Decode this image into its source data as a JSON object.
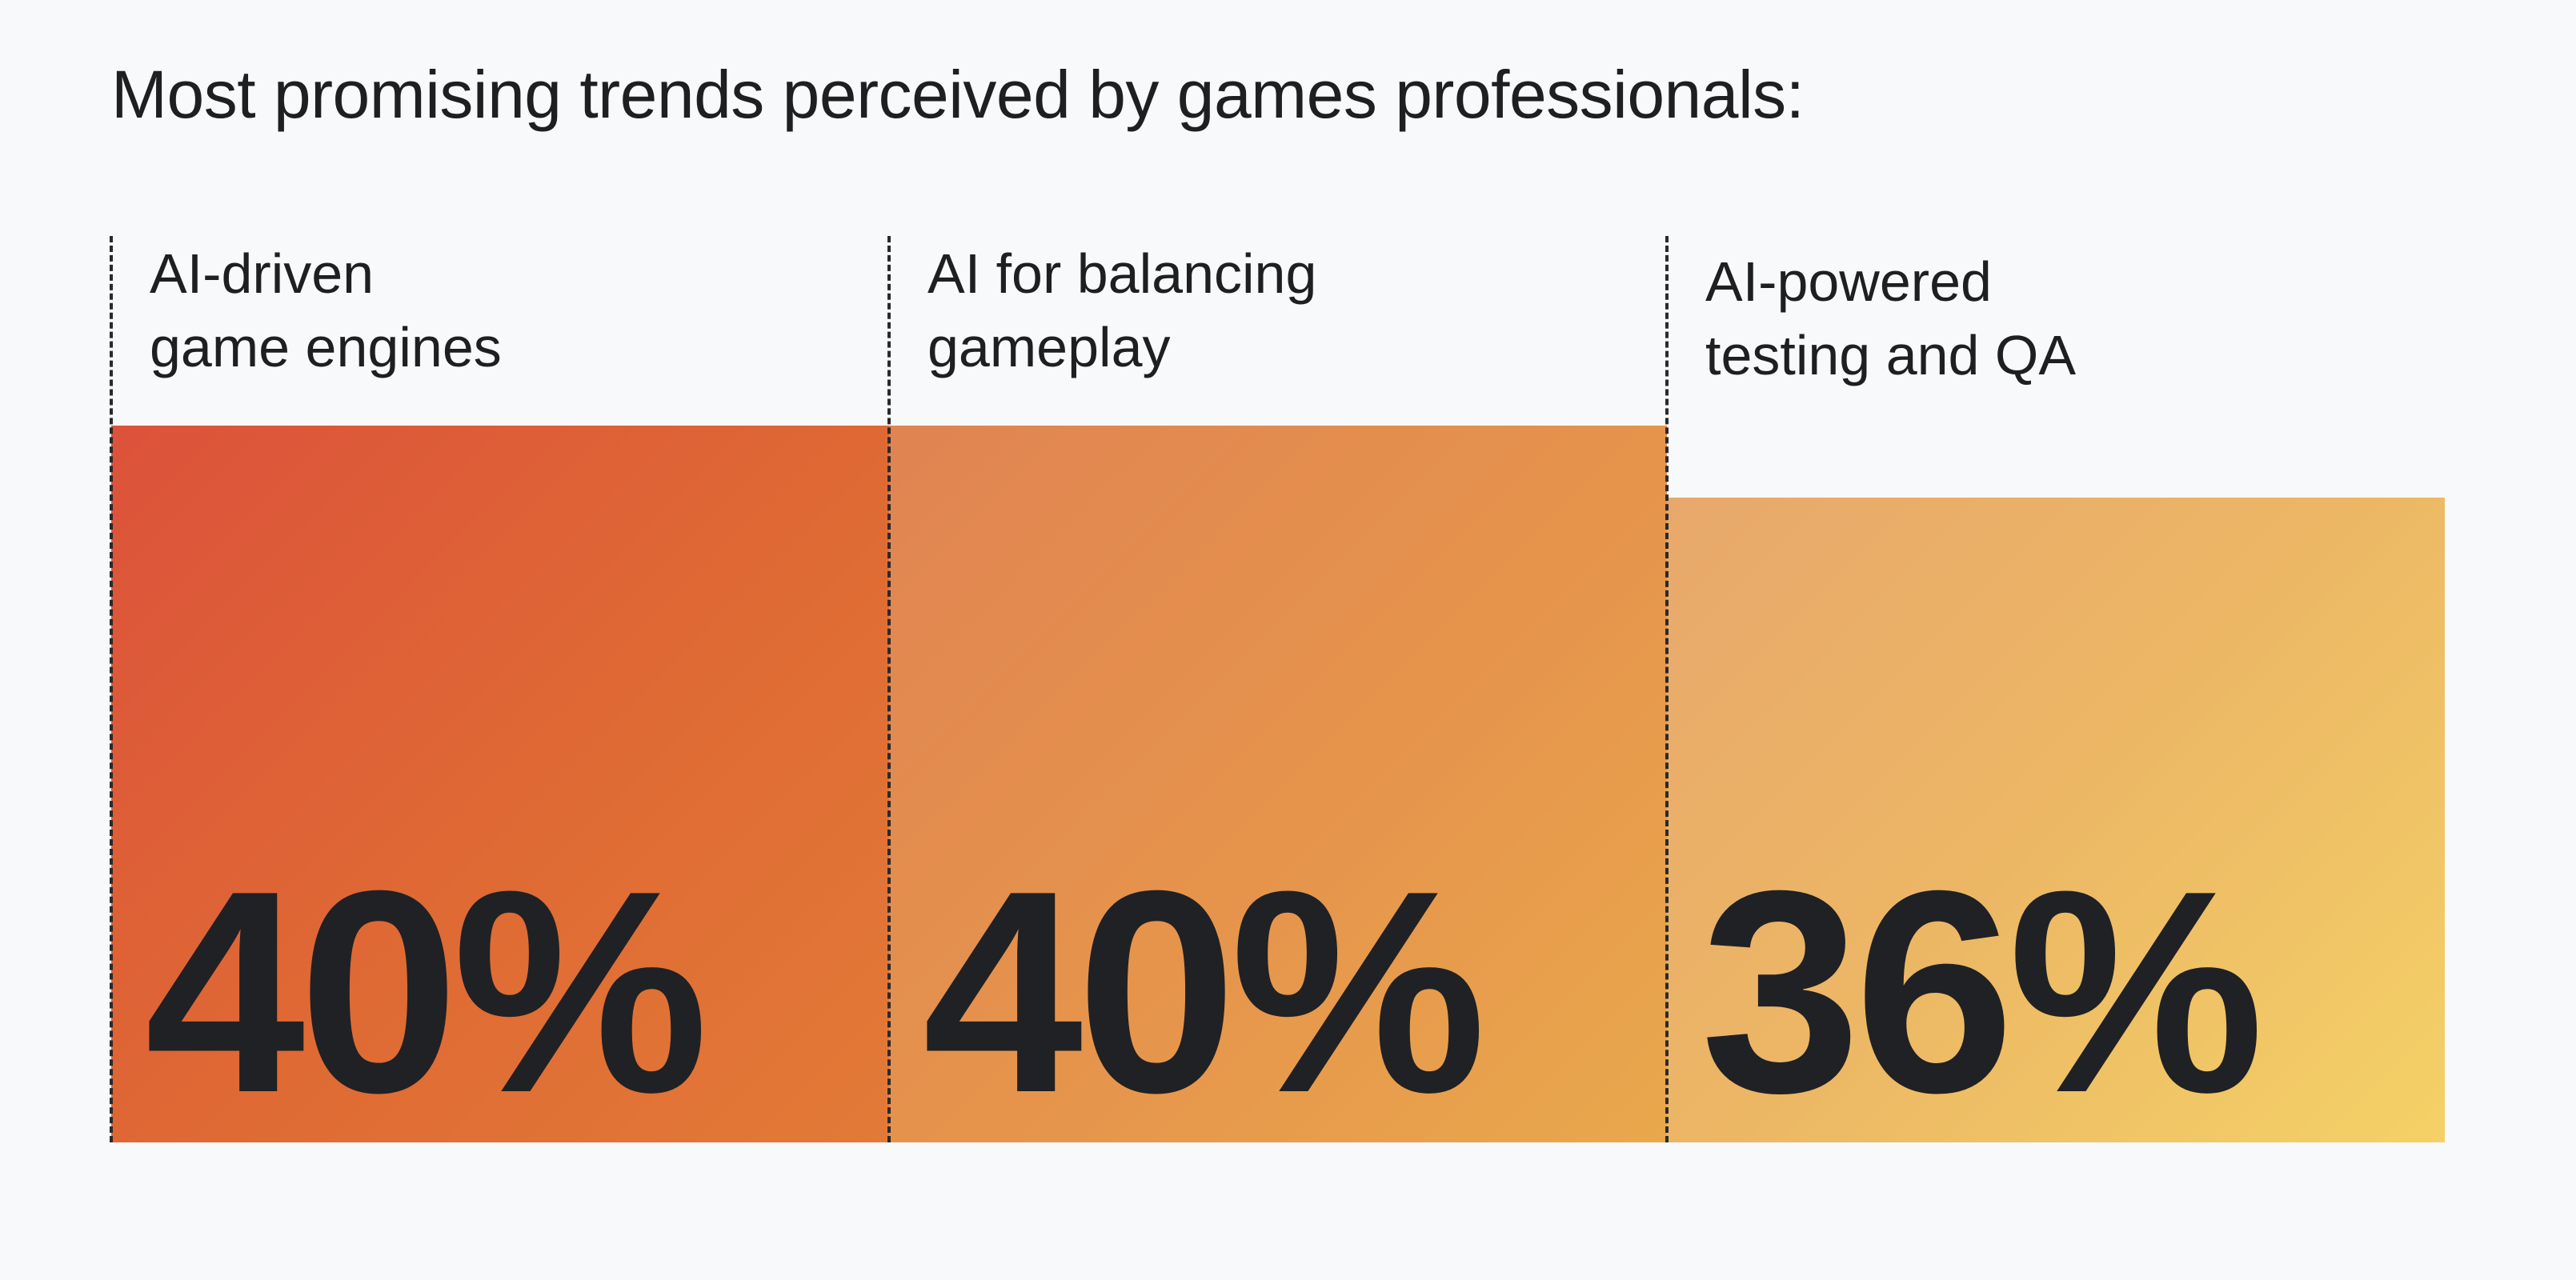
{
  "chart_data": {
    "type": "bar",
    "title": "Most promising trends perceived by games professionals:",
    "categories": [
      "AI-driven\ngame engines",
      "AI for balancing\ngameplay",
      "AI-powered\ntesting and QA"
    ],
    "values": [
      40,
      40,
      36
    ],
    "value_labels": [
      "40%",
      "40%",
      "36%"
    ],
    "unit": "%",
    "xlabel": "",
    "ylabel": "",
    "grid": false,
    "legend": "none",
    "colors": {
      "bar_1_gradient": [
        "#dc523b",
        "#e27a37"
      ],
      "bar_2_gradient": [
        "#e08452",
        "#e9a84c"
      ],
      "bar_3_gradient": [
        "#e8a86b",
        "#f4d166"
      ],
      "text": "#202124",
      "background": "#f8f9fb"
    }
  }
}
